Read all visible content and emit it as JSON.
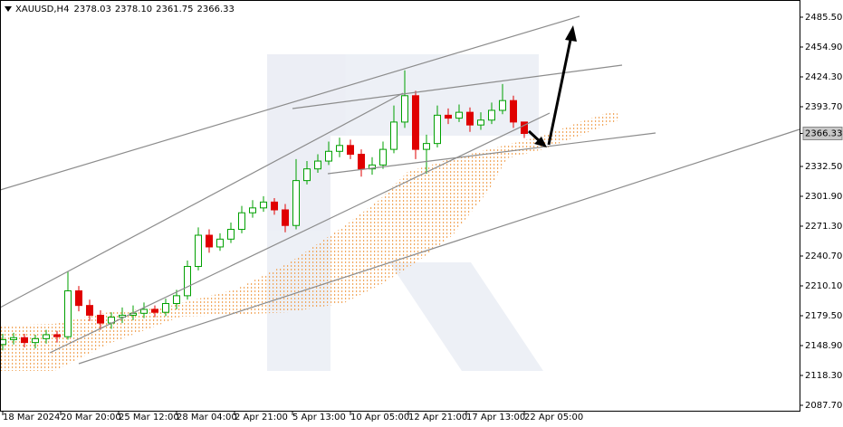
{
  "chart_data": {
    "type": "candlestick",
    "title": "XAUUSD,H4",
    "quote": [
      "2378.03",
      "2378.10",
      "2361.75",
      "2366.33"
    ],
    "current_price": {
      "value": 2366.33,
      "label": "2366.33"
    },
    "up_color": "#00a000",
    "down_color": "#e00000",
    "xlim": [
      -0.75,
      220
    ],
    "xticks": [
      {
        "value": 0,
        "label": "18 Mar 2024"
      },
      {
        "value": 16,
        "label": "20 Mar 20:00"
      },
      {
        "value": 32,
        "label": "25 Mar 12:00"
      },
      {
        "value": 48,
        "label": "28 Mar 04:00"
      },
      {
        "value": 64,
        "label": "2 Apr 21:00"
      },
      {
        "value": 80,
        "label": "5 Apr 13:00"
      },
      {
        "value": 96,
        "label": "10 Apr 05:00"
      },
      {
        "value": 112,
        "label": "12 Apr 21:00"
      },
      {
        "value": 128,
        "label": "17 Apr 13:00"
      },
      {
        "value": 144,
        "label": "22 Apr 05:00"
      }
    ],
    "ylim": [
      2081.2,
      2503.1
    ],
    "yticks": [
      {
        "value": 2087.7,
        "label": "2087.70"
      },
      {
        "value": 2118.3,
        "label": "2118.30"
      },
      {
        "value": 2148.9,
        "label": "2148.90"
      },
      {
        "value": 2179.5,
        "label": "2179.50"
      },
      {
        "value": 2210.1,
        "label": "2210.10"
      },
      {
        "value": 2240.7,
        "label": "2240.70"
      },
      {
        "value": 2271.3,
        "label": "2271.30"
      },
      {
        "value": 2301.9,
        "label": "2301.90"
      },
      {
        "value": 2332.5,
        "label": "2332.50"
      },
      {
        "value": 2393.7,
        "label": "2393.70"
      },
      {
        "value": 2424.3,
        "label": "2424.30"
      },
      {
        "value": 2454.9,
        "label": "2454.90"
      },
      {
        "value": 2485.5,
        "label": "2485.50"
      }
    ],
    "x": [
      0,
      3,
      6,
      9,
      12,
      15,
      18,
      21,
      24,
      27,
      30,
      33,
      36,
      39,
      42,
      45,
      48,
      51,
      54,
      57,
      60,
      63,
      66,
      69,
      72,
      75,
      78,
      81,
      84,
      87,
      90,
      93,
      96,
      99,
      102,
      105,
      108,
      111,
      114,
      117,
      120,
      123,
      126,
      129,
      132,
      135,
      138,
      141,
      144
    ],
    "open": [
      2150,
      2155,
      2157,
      2152,
      2156,
      2160,
      2158,
      2205,
      2190,
      2180,
      2172,
      2178,
      2180,
      2182,
      2186,
      2183,
      2192,
      2200,
      2230,
      2262,
      2250,
      2258,
      2268,
      2285,
      2290,
      2296,
      2288,
      2272,
      2318,
      2330,
      2338,
      2348,
      2354,
      2345,
      2330,
      2334,
      2350,
      2378,
      2405,
      2350,
      2356,
      2385,
      2382,
      2388,
      2375,
      2380,
      2390,
      2400,
      2378.03
    ],
    "high": [
      2161,
      2162,
      2161,
      2160,
      2165,
      2164,
      2225,
      2210,
      2196,
      2185,
      2183,
      2188,
      2190,
      2193,
      2190,
      2197,
      2206,
      2236,
      2270,
      2268,
      2264,
      2275,
      2292,
      2298,
      2302,
      2300,
      2294,
      2340,
      2338,
      2345,
      2358,
      2362,
      2360,
      2350,
      2342,
      2358,
      2395,
      2431,
      2410,
      2365,
      2395,
      2392,
      2396,
      2393,
      2388,
      2398,
      2417,
      2405,
      2378.1
    ],
    "low": [
      2144,
      2150,
      2147,
      2146,
      2151,
      2152,
      2155,
      2184,
      2174,
      2165,
      2166,
      2172,
      2175,
      2177,
      2178,
      2179,
      2186,
      2196,
      2226,
      2244,
      2246,
      2254,
      2264,
      2280,
      2286,
      2283,
      2265,
      2268,
      2314,
      2326,
      2334,
      2342,
      2340,
      2322,
      2324,
      2330,
      2346,
      2372,
      2340,
      2325,
      2352,
      2376,
      2378,
      2368,
      2370,
      2376,
      2386,
      2372,
      2361.75
    ],
    "close": [
      2155,
      2157,
      2152,
      2156,
      2160,
      2158,
      2205,
      2190,
      2180,
      2172,
      2178,
      2180,
      2182,
      2186,
      2183,
      2192,
      2200,
      2230,
      2262,
      2250,
      2258,
      2268,
      2285,
      2290,
      2296,
      2288,
      2272,
      2318,
      2330,
      2338,
      2348,
      2354,
      2345,
      2330,
      2334,
      2350,
      2378,
      2405,
      2350,
      2356,
      2385,
      2382,
      2388,
      2375,
      2380,
      2390,
      2400,
      2378.03,
      2366.33
    ]
  }
}
